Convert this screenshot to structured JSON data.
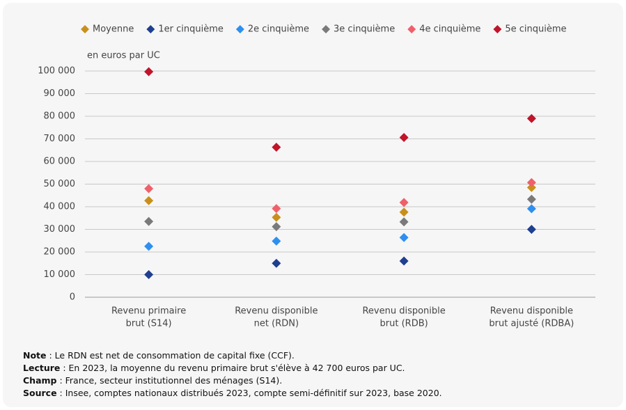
{
  "chart_data": {
    "type": "scatter",
    "y_label": "en euros par UC",
    "categories": [
      [
        "Revenu primaire",
        "brut (S14)"
      ],
      [
        "Revenu disponible",
        "net (RDN)"
      ],
      [
        "Revenu disponible",
        "brut (RDB)"
      ],
      [
        "Revenu disponible",
        "brut ajusté (RDBA)"
      ]
    ],
    "series": [
      {
        "name": "Moyenne",
        "color": "#c8901a",
        "values": [
          42700,
          35300,
          37600,
          48500
        ]
      },
      {
        "name": "1er cinquième",
        "color": "#1f3f8f",
        "values": [
          10000,
          15000,
          16000,
          30000
        ]
      },
      {
        "name": "2e cinquième",
        "color": "#2e8ff0",
        "values": [
          22500,
          24800,
          26400,
          39100
        ]
      },
      {
        "name": "3e cinquième",
        "color": "#7a7a7a",
        "values": [
          33500,
          31200,
          33300,
          43300
        ]
      },
      {
        "name": "4e cinquième",
        "color": "#f0606a",
        "values": [
          48000,
          39200,
          41900,
          50700
        ]
      },
      {
        "name": "5e cinquième",
        "color": "#c0142b",
        "values": [
          99700,
          66300,
          70600,
          79000
        ]
      }
    ],
    "ylim": [
      0,
      100000
    ],
    "yticks": [
      0,
      {
        "value": 10000,
        "label": "10 000"
      },
      {
        "value": 20000,
        "label": "20 000"
      },
      {
        "value": 30000,
        "label": "30 000"
      },
      {
        "value": 40000,
        "label": "40 000"
      },
      {
        "value": 50000,
        "label": "50 000"
      },
      {
        "value": 60000,
        "label": "60 000"
      },
      {
        "value": 70000,
        "label": "70 000"
      },
      {
        "value": 80000,
        "label": "80 000"
      },
      {
        "value": 90000,
        "label": "90 000"
      },
      {
        "value": 100000,
        "label": "100 000"
      }
    ],
    "grid": true,
    "legend": "top"
  },
  "notes": [
    {
      "label": "Note",
      "text": " : Le RDN est net de consommation de capital fixe (CCF)."
    },
    {
      "label": "Lecture",
      "text": " : En 2023, la moyenne du revenu primaire brut s'élève à 42 700 euros par UC."
    },
    {
      "label": "Champ",
      "text": " : France, secteur institutionnel des ménages (S14)."
    },
    {
      "label": "Source",
      "text": " : Insee, comptes nationaux distribués 2023, compte semi-définitif sur 2023, base 2020."
    }
  ]
}
